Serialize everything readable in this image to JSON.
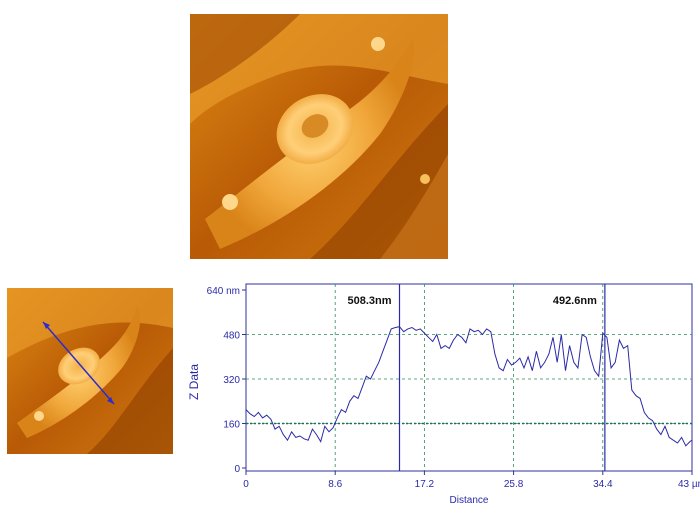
{
  "chart_data": {
    "type": "line",
    "ylabel": "Z Data",
    "xlabel": "Distance",
    "x_ticks": [
      "0",
      "8.6",
      "17.2",
      "25.8",
      "34.4",
      "43 µm"
    ],
    "y_ticks": [
      "0",
      "160",
      "320",
      "480",
      "640 nm"
    ],
    "xlim": [
      0,
      43
    ],
    "ylim": [
      0,
      640
    ],
    "grid": true,
    "reference_line": 160,
    "markers": [
      {
        "x": 14.8,
        "label": "508.3nm"
      },
      {
        "x": 34.6,
        "label": "492.6nm"
      }
    ],
    "series": [
      {
        "x": [
          0,
          0.4,
          0.8,
          1.2,
          1.6,
          2.0,
          2.4,
          2.8,
          3.2,
          3.6,
          4.0,
          4.4,
          4.8,
          5.2,
          5.6,
          6.0,
          6.4,
          6.8,
          7.2,
          7.6,
          8.0,
          8.4,
          8.8,
          9.2,
          9.6,
          10.0,
          10.4,
          10.8,
          11.2,
          11.6,
          12.0,
          12.4,
          12.8,
          13.2,
          13.6,
          14.0,
          14.4,
          14.8,
          15.2,
          15.6,
          16.0,
          16.4,
          16.8,
          17.2,
          17.6,
          18.0,
          18.4,
          18.8,
          19.2,
          19.6,
          20.0,
          20.4,
          20.8,
          21.2,
          21.6,
          22.0,
          22.4,
          22.8,
          23.2,
          23.6,
          24.0,
          24.4,
          24.8,
          25.2,
          25.6,
          26.0,
          26.4,
          26.8,
          27.2,
          27.6,
          28.0,
          28.4,
          28.8,
          29.2,
          29.6,
          30.0,
          30.4,
          30.8,
          31.2,
          31.6,
          32.0,
          32.4,
          32.8,
          33.2,
          33.6,
          34.0,
          34.4,
          34.8,
          35.2,
          35.6,
          36.0,
          36.4,
          36.8,
          37.2,
          37.6,
          38.0,
          38.4,
          38.8,
          39.2,
          39.6,
          40.0,
          40.4,
          40.8,
          41.2,
          41.6,
          42.0,
          42.4,
          42.8,
          43.0
        ],
        "values": [
          210,
          195,
          185,
          200,
          180,
          190,
          175,
          140,
          150,
          120,
          100,
          130,
          110,
          115,
          105,
          100,
          140,
          120,
          95,
          150,
          130,
          145,
          180,
          210,
          200,
          240,
          260,
          250,
          290,
          330,
          320,
          350,
          380,
          420,
          460,
          500,
          505,
          508,
          490,
          500,
          505,
          495,
          500,
          485,
          470,
          455,
          480,
          430,
          440,
          430,
          460,
          480,
          470,
          450,
          500,
          490,
          495,
          480,
          500,
          490,
          410,
          360,
          350,
          390,
          370,
          380,
          395,
          360,
          400,
          350,
          420,
          360,
          380,
          410,
          470,
          380,
          480,
          350,
          440,
          380,
          360,
          480,
          470,
          400,
          350,
          330,
          485,
          470,
          360,
          380,
          460,
          430,
          440,
          280,
          260,
          250,
          200,
          180,
          170,
          140,
          120,
          150,
          110,
          100,
          90,
          110,
          80,
          95,
          100
        ]
      }
    ]
  }
}
